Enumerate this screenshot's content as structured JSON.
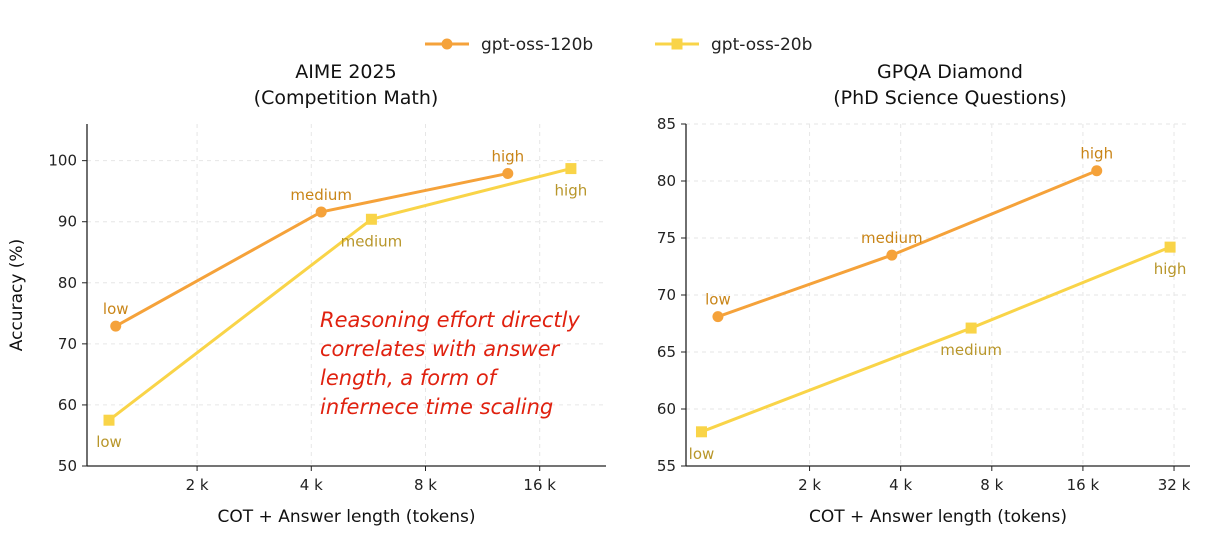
{
  "colors": {
    "gpt_oss_120b": "#f5a23a",
    "gpt_oss_20b": "#f9d448",
    "label_120b": "#c98518",
    "label_20b": "#b8962a",
    "grid": "#e6e6e6",
    "annotation": "#e0210f"
  },
  "legend": [
    {
      "name": "gpt-oss-120b",
      "marker": "circle"
    },
    {
      "name": "gpt-oss-20b",
      "marker": "square"
    }
  ],
  "annotation": "Reasoning effort directly\ncorrelates with answer\nlength, a form of\ninfernece time scaling",
  "chart_data": [
    {
      "type": "line",
      "title": "AIME 2025",
      "subtitle": "(Competition Math)",
      "xlabel": "COT + Answer length (tokens)",
      "ylabel": "Accuracy (%)",
      "xscale": "log2",
      "xlim": [
        1050,
        24500
      ],
      "ylim": [
        50,
        106
      ],
      "xticks": [
        2048,
        4096,
        8192,
        16384
      ],
      "xtick_labels": [
        "2 k",
        "4 k",
        "8 k",
        "16 k"
      ],
      "yticks": [
        50,
        60,
        70,
        80,
        90,
        100
      ],
      "ytick_labels": [
        "50",
        "60",
        "70",
        "80",
        "90",
        "100"
      ],
      "grid": true,
      "series": [
        {
          "name": "gpt-oss-120b",
          "marker": "circle",
          "x": [
            1250,
            4350,
            13500
          ],
          "y": [
            72.9,
            91.6,
            97.9
          ],
          "labels": [
            "low",
            "medium",
            "high"
          ],
          "label_pos": [
            "above",
            "above",
            "above"
          ]
        },
        {
          "name": "gpt-oss-20b",
          "marker": "square",
          "x": [
            1200,
            5900,
            19800
          ],
          "y": [
            57.5,
            90.4,
            98.7
          ],
          "labels": [
            "low",
            "medium",
            "high"
          ],
          "label_pos": [
            "below",
            "below",
            "below"
          ]
        }
      ]
    },
    {
      "type": "line",
      "title": "GPQA Diamond",
      "subtitle": "(PhD Science Questions)",
      "xlabel": "COT + Answer length (tokens)",
      "ylabel": "",
      "xscale": "log2",
      "xlim": [
        800,
        37000
      ],
      "ylim": [
        55,
        85
      ],
      "xticks": [
        2048,
        4096,
        8192,
        16384,
        32768
      ],
      "xtick_labels": [
        "2 k",
        "4 k",
        "8 k",
        "16 k",
        "32 k"
      ],
      "yticks": [
        55,
        60,
        65,
        70,
        75,
        80,
        85
      ],
      "ytick_labels": [
        "55",
        "60",
        "65",
        "70",
        "75",
        "80",
        "85"
      ],
      "grid": true,
      "series": [
        {
          "name": "gpt-oss-120b",
          "marker": "circle",
          "x": [
            1020,
            3830,
            18200
          ],
          "y": [
            68.1,
            73.5,
            80.9
          ],
          "labels": [
            "low",
            "medium",
            "high"
          ],
          "label_pos": [
            "above",
            "above",
            "above"
          ]
        },
        {
          "name": "gpt-oss-20b",
          "marker": "square",
          "x": [
            900,
            7000,
            31800
          ],
          "y": [
            58.0,
            67.1,
            74.2
          ],
          "labels": [
            "low",
            "medium",
            "high"
          ],
          "label_pos": [
            "below",
            "below",
            "below"
          ]
        }
      ]
    }
  ]
}
